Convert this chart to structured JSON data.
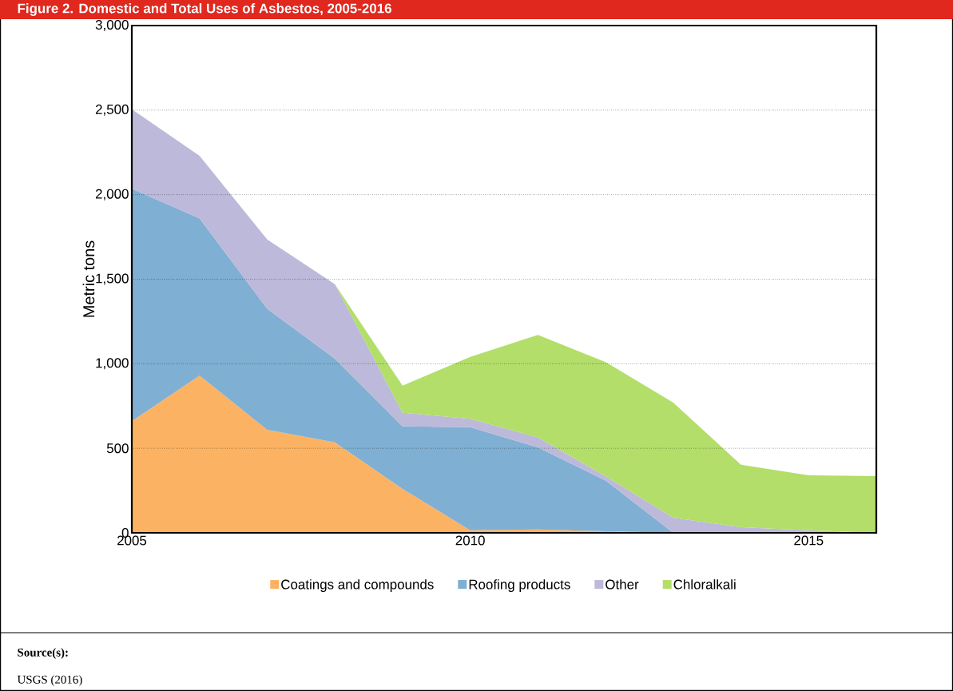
{
  "chart_data": {
    "type": "area",
    "stacked": true,
    "title": "Figure 2. Domestic and Total Uses of Asbestos, 2005-2016",
    "ylabel": "Metric tons",
    "x": [
      2005,
      2006,
      2007,
      2008,
      2009,
      2010,
      2011,
      2012,
      2013,
      2014,
      2015,
      2016
    ],
    "series": [
      {
        "name": "Coatings and compounds",
        "color": "#fbb363",
        "values": [
          660,
          930,
          610,
          535,
          260,
          15,
          20,
          10,
          0,
          0,
          0,
          0
        ]
      },
      {
        "name": "Roofing products",
        "color": "#7fafd2",
        "values": [
          1375,
          930,
          715,
          495,
          370,
          610,
          485,
          300,
          0,
          0,
          0,
          0
        ]
      },
      {
        "name": "Other",
        "color": "#bdb9da",
        "values": [
          470,
          370,
          410,
          440,
          80,
          50,
          60,
          25,
          90,
          33,
          15,
          0
        ]
      },
      {
        "name": "Chloralkali",
        "color": "#b3de69",
        "values": [
          null,
          null,
          null,
          0,
          160,
          365,
          605,
          675,
          680,
          370,
          325,
          335
        ]
      }
    ],
    "xlim": [
      2005,
      2016
    ],
    "xticks": [
      2005,
      2010,
      2015
    ],
    "ylim": [
      0,
      3000
    ],
    "yticks": [
      {
        "value": 0,
        "label": "0"
      },
      {
        "value": 500,
        "label": "500"
      },
      {
        "value": 1000,
        "label": "1,000"
      },
      {
        "value": 1500,
        "label": "1,500"
      },
      {
        "value": 2000,
        "label": "2,000"
      },
      {
        "value": 2500,
        "label": "2,500"
      },
      {
        "value": 3000,
        "label": "3,000"
      }
    ],
    "grid": "y",
    "legend": "bottom",
    "annotations": [
      "Source(s):",
      "USGS (2016)"
    ]
  }
}
